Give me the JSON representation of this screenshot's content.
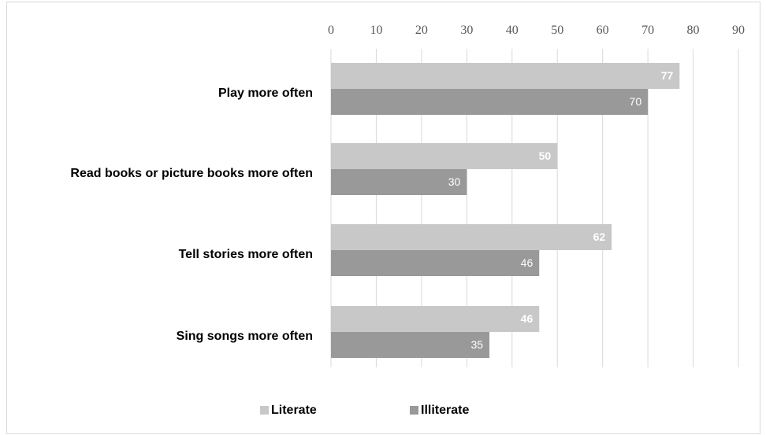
{
  "chart_data": {
    "type": "bar",
    "orientation": "horizontal",
    "categories": [
      "Play more often",
      "Read books or picture books more often",
      "Tell stories more often",
      "Sing songs more often"
    ],
    "series": [
      {
        "name": "Literate",
        "values": [
          77,
          50,
          62,
          46
        ],
        "color": "#c8c8c8"
      },
      {
        "name": "Illiterate",
        "values": [
          70,
          30,
          46,
          35
        ],
        "color": "#999999"
      }
    ],
    "xlim": [
      0,
      90
    ],
    "xticks": [
      "0",
      "10",
      "20",
      "30",
      "40",
      "50",
      "60",
      "70",
      "80",
      "90"
    ],
    "grid": true,
    "axis_position": "top",
    "legend_position": "bottom"
  }
}
